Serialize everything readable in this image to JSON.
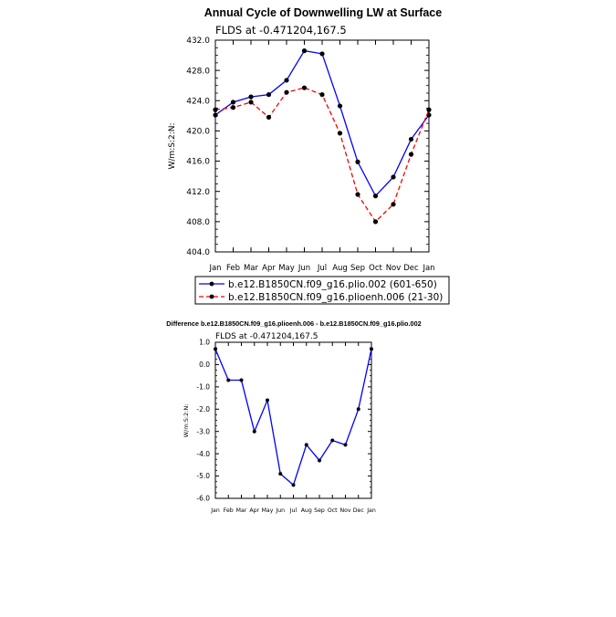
{
  "chart_data": [
    {
      "type": "line",
      "title": "Annual Cycle of Downwelling LW at Surface",
      "subtitle": "FLDS at -0.471204,167.5",
      "ylabel": "W/m:S:2:N:",
      "xlabel": "",
      "categories": [
        "Jan",
        "Feb",
        "Mar",
        "Apr",
        "May",
        "Jun",
        "Jul",
        "Aug",
        "Sep",
        "Oct",
        "Nov",
        "Dec",
        "Jan"
      ],
      "ylim": [
        404.0,
        432.0
      ],
      "yticks": [
        "404.0",
        "408.0",
        "412.0",
        "416.0",
        "420.0",
        "424.0",
        "428.0",
        "432.0"
      ],
      "legend_position": "bottom",
      "grid": false,
      "series": [
        {
          "name": "b.e12.B1850CN.f09_g16.plio.002 (601-650)",
          "color": "#0000ff",
          "dash": "solid",
          "values": [
            422.1,
            423.8,
            424.5,
            424.8,
            426.7,
            430.6,
            430.2,
            423.3,
            415.9,
            411.4,
            413.9,
            418.9,
            422.1
          ]
        },
        {
          "name": "b.e12.B1850CN.f09_g16.plioenh.006 (21-30)",
          "color": "#ff0000",
          "dash": "dashed",
          "values": [
            422.8,
            423.1,
            423.8,
            421.8,
            425.1,
            425.7,
            424.8,
            419.7,
            411.6,
            408.0,
            410.3,
            416.9,
            422.8
          ]
        }
      ]
    },
    {
      "type": "line",
      "title": "Difference b.e12.B1850CN.f09_g16.plioenh.006 - b.e12.B1850CN.f09_g16.plio.002",
      "subtitle": "FLDS at -0.471204,167.5",
      "ylabel": "W/m:S:2:N:",
      "xlabel": "",
      "categories": [
        "Jan",
        "Feb",
        "Mar",
        "Apr",
        "May",
        "Jun",
        "Jul",
        "Aug",
        "Sep",
        "Oct",
        "Nov",
        "Dec",
        "Jan"
      ],
      "ylim": [
        -6.0,
        1.0
      ],
      "yticks": [
        "-6.0",
        "-5.0",
        "-4.0",
        "-3.0",
        "-2.0",
        "-1.0",
        "0.0",
        "1.0"
      ],
      "grid": false,
      "series": [
        {
          "color": "#0000ff",
          "dash": "solid",
          "values": [
            0.7,
            -0.7,
            -0.7,
            -3.0,
            -1.6,
            -4.9,
            -5.4,
            -3.6,
            -4.3,
            -3.4,
            -3.6,
            -2.0,
            0.7
          ]
        }
      ]
    }
  ]
}
